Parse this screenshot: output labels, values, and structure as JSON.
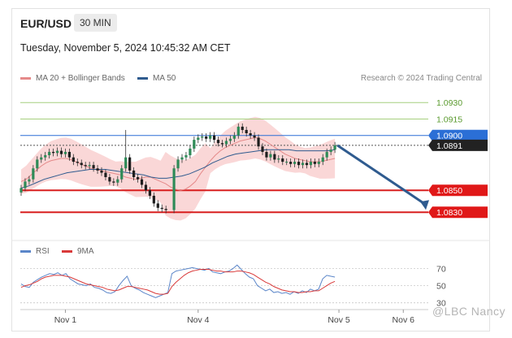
{
  "header": {
    "pair": "EUR/USD",
    "timeframe": "30 MIN",
    "datetime": "Tuesday, November 5, 2024 10:45:32 AM CET"
  },
  "legend": {
    "ma20_label": "MA 20 + Bollinger Bands",
    "ma20_color": "#e58a8a",
    "ma50_label": "MA 50",
    "ma50_color": "#2f5b8f",
    "credit": "Research © 2024 Trading Central"
  },
  "rsi_legend": {
    "rsi_label": "RSI",
    "rsi_color": "#5b86c9",
    "ma9_label": "9MA",
    "ma9_color": "#d93a3a"
  },
  "watermark": "@LBC Nancy",
  "chart_data": [
    {
      "type": "candlestick",
      "ylim": [
        1.0822,
        1.0942
      ],
      "x_ticks": [
        {
          "label": "Nov 1",
          "i": 11
        },
        {
          "label": "Nov 4",
          "i": 44
        },
        {
          "label": "Nov 5",
          "i": 79
        },
        {
          "label": "Nov 6",
          "i": 95
        }
      ],
      "levels": [
        {
          "label": "1.0930",
          "value": 1.093,
          "color": "#a6cf7e",
          "text_color": "#5a9a2e",
          "tag": false
        },
        {
          "label": "1.0915",
          "value": 1.0915,
          "color": "#a6cf7e",
          "text_color": "#5a9a2e",
          "tag": false
        },
        {
          "label": "1.0900",
          "value": 1.09,
          "color": "#2b6fd6",
          "text_color": "#ffffff",
          "tag": true,
          "tag_color": "#2b6fd6"
        },
        {
          "label": "1.0891",
          "value": 1.0891,
          "color": "#555555",
          "text_color": "#ffffff",
          "tag": true,
          "tag_color": "#222222",
          "dotted": true
        },
        {
          "label": "1.0850",
          "value": 1.085,
          "color": "#d81f1f",
          "text_color": "#ffffff",
          "tag": true,
          "tag_color": "#e01818"
        },
        {
          "label": "1.0830",
          "value": 1.083,
          "color": "#d81f1f",
          "text_color": "#ffffff",
          "tag": true,
          "tag_color": "#e01818"
        }
      ],
      "close": [
        1.0852,
        1.0858,
        1.086,
        1.087,
        1.0878,
        1.088,
        1.0882,
        1.0885,
        1.0884,
        1.0886,
        1.0883,
        1.0885,
        1.088,
        1.0876,
        1.0875,
        1.0873,
        1.0872,
        1.0873,
        1.087,
        1.0868,
        1.0866,
        1.0862,
        1.0858,
        1.0857,
        1.086,
        1.087,
        1.088,
        1.0868,
        1.0862,
        1.086,
        1.0855,
        1.085,
        1.0845,
        1.0838,
        1.0834,
        1.0833,
        1.0832,
        1.087,
        1.0878,
        1.088,
        1.0882,
        1.0888,
        1.0896,
        1.0898,
        1.0899,
        1.0897,
        1.09,
        1.0896,
        1.0893,
        1.0892,
        1.0895,
        1.0897,
        1.09,
        1.0908,
        1.0905,
        1.0902,
        1.09,
        1.0898,
        1.089,
        1.0885,
        1.088,
        1.0883,
        1.0878,
        1.0879,
        1.0876,
        1.0876,
        1.0874,
        1.0876,
        1.0873,
        1.0875,
        1.0873,
        1.0876,
        1.0874,
        1.0876,
        1.088,
        1.0885,
        1.0887,
        1.0891
      ],
      "candle_x": [
        0,
        1,
        2,
        3,
        4,
        5,
        6,
        7,
        8,
        9,
        10,
        11,
        12,
        13,
        14,
        15,
        16,
        17,
        18,
        19,
        20,
        21,
        22,
        23,
        24,
        25,
        26,
        27,
        28,
        29,
        30,
        31,
        32,
        33,
        34,
        35,
        36,
        38,
        39,
        40,
        41,
        42,
        43,
        44,
        45,
        46,
        47,
        48,
        49,
        50,
        51,
        52,
        53,
        54,
        55,
        56,
        57,
        58,
        59,
        60,
        61,
        62,
        63,
        64,
        65,
        66,
        67,
        68,
        69,
        70,
        71,
        72,
        73,
        74,
        75,
        76,
        77,
        78
      ],
      "ma20": [
        1.0858,
        1.086,
        1.0864,
        1.0868,
        1.0872,
        1.0875,
        1.0877,
        1.0878,
        1.0879,
        1.0879,
        1.0878,
        1.0876,
        1.0874,
        1.0872,
        1.087,
        1.0869,
        1.0868,
        1.0867,
        1.0866,
        1.0865,
        1.0864,
        1.0862,
        1.0861,
        1.086,
        1.0861,
        1.0862,
        1.0862,
        1.086,
        1.0858,
        1.0856,
        1.0853,
        1.0851,
        1.085,
        1.0851,
        1.0854,
        1.0858,
        1.0865,
        1.0871,
        1.0877,
        1.0882,
        1.0886,
        1.0889,
        1.0891,
        1.0893,
        1.0895,
        1.0896,
        1.0897,
        1.0898,
        1.0897,
        1.0895,
        1.0892,
        1.0889,
        1.0886,
        1.0883,
        1.0881,
        1.0879,
        1.0878,
        1.0877,
        1.0876,
        1.0876,
        1.0876,
        1.0877,
        1.0878,
        1.0879
      ],
      "ma50": [
        1.0852,
        1.0854,
        1.0857,
        1.086,
        1.0862,
        1.0864,
        1.0866,
        1.0867,
        1.0868,
        1.0869,
        1.0869,
        1.0869,
        1.0868,
        1.0867,
        1.0866,
        1.0865,
        1.0864,
        1.0862,
        1.0861,
        1.0861,
        1.0862,
        1.0863,
        1.0865,
        1.0868,
        1.0871,
        1.0875,
        1.0878,
        1.0881,
        1.0883,
        1.0884,
        1.0885,
        1.0886,
        1.0887,
        1.0887,
        1.0887,
        1.0887,
        1.0886,
        1.0886,
        1.0886,
        1.0886,
        1.0886,
        1.0887
      ],
      "forecast": {
        "from": 1.0891,
        "to": 1.083
      }
    },
    {
      "type": "line",
      "ylim": [
        25,
        78
      ],
      "y_ticks": [
        30,
        50,
        70
      ],
      "series": [
        {
          "name": "RSI",
          "values": [
            52,
            49,
            48,
            54,
            57,
            60,
            62,
            64,
            63,
            65,
            62,
            64,
            58,
            55,
            52,
            51,
            50,
            52,
            48,
            47,
            45,
            42,
            41,
            43,
            50,
            56,
            61,
            50,
            47,
            45,
            42,
            40,
            38,
            36,
            38,
            40,
            42,
            64,
            67,
            68,
            69,
            70,
            71,
            70,
            69,
            68,
            70,
            66,
            65,
            64,
            66,
            67,
            70,
            74,
            69,
            64,
            60,
            58,
            50,
            47,
            44,
            46,
            42,
            43,
            41,
            42,
            40,
            43,
            41,
            44,
            42,
            46,
            44,
            46,
            58,
            62,
            61,
            60
          ]
        },
        {
          "name": "9MA",
          "values": [
            48,
            50,
            51,
            53,
            55,
            58,
            60,
            61,
            62,
            62,
            62,
            61,
            60,
            58,
            56,
            54,
            52,
            51,
            50,
            49,
            48,
            46,
            45,
            44,
            45,
            47,
            49,
            49,
            48,
            47,
            46,
            45,
            43,
            41,
            40,
            40,
            41,
            49,
            54,
            58,
            62,
            65,
            67,
            68,
            69,
            69,
            69,
            68,
            67,
            67,
            66,
            66,
            66,
            67,
            67,
            66,
            65,
            63,
            60,
            57,
            54,
            52,
            49,
            47,
            45,
            44,
            43,
            43,
            42,
            42,
            43,
            43,
            44,
            44,
            47,
            50,
            53,
            55
          ]
        }
      ]
    }
  ]
}
